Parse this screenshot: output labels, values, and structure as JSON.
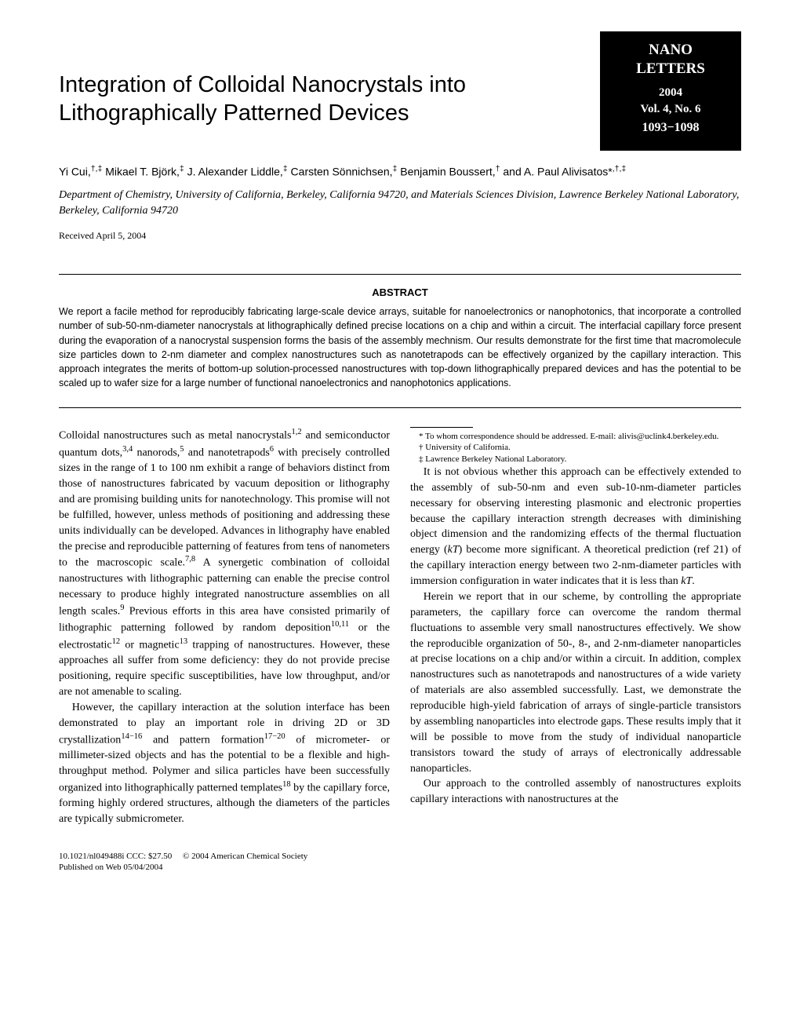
{
  "journal": {
    "name_line1": "NANO",
    "name_line2": "LETTERS",
    "year": "2004",
    "volume": "Vol. 4, No. 6",
    "pages": "1093−1098"
  },
  "title": "Integration of Colloidal Nanocrystals into Lithographically Patterned Devices",
  "authors_html": "Yi Cui,<sup>†,‡</sup> Mikael T. Björk,<sup>‡</sup> J. Alexander Liddle,<sup>‡</sup> Carsten Sönnichsen,<sup>‡</sup> Benjamin Boussert,<sup>†</sup> and A. Paul Alivisatos*<sup>,†,‡</sup>",
  "affiliation": "Department of Chemistry, University of California, Berkeley, California 94720, and Materials Sciences Division, Lawrence Berkeley National Laboratory, Berkeley, California 94720",
  "received": "Received April 5, 2004",
  "abstract_label": "ABSTRACT",
  "abstract": "We report a facile method for reproducibly fabricating large-scale device arrays, suitable for nanoelectronics or nanophotonics, that incorporate a controlled number of sub-50-nm-diameter nanocrystals at lithographically defined precise locations on a chip and within a circuit. The interfacial capillary force present during the evaporation of a nanocrystal suspension forms the basis of the assembly mechnism. Our results demonstrate for the first time that macromolecule size particles down to 2-nm diameter and complex nanostructures such as nanotetrapods can be effectively organized by the capillary interaction. This approach integrates the merits of bottom-up solution-processed nanostructures with top-down lithographically prepared devices and has the potential to be scaled up to wafer size for a large number of functional nanoelectronics and nanophotonics applications.",
  "body": {
    "p1_html": "Colloidal nanostructures such as metal nanocrystals<sup>1,2</sup> and semiconductor quantum dots,<sup>3,4</sup> nanorods,<sup>5</sup> and nanotetrapods<sup>6</sup> with precisely controlled sizes in the range of 1 to 100 nm exhibit a range of behaviors distinct from those of nanostructures fabricated by vacuum deposition or lithography and are promising building units for nanotechnology. This promise will not be fulfilled, however, unless methods of positioning and addressing these units individually can be developed. Advances in lithography have enabled the precise and reproducible patterning of features from tens of nanometers to the macroscopic scale.<sup>7,8</sup> A synergetic combination of colloidal nanostructures with lithographic patterning can enable the precise control necessary to produce highly integrated nanostructure assemblies on all length scales.<sup>9</sup> Previous efforts in this area have consisted primarily of lithographic patterning followed by random deposition<sup>10,11</sup> or the electrostatic<sup>12</sup> or magnetic<sup>13</sup> trapping of nanostructures. However, these approaches all suffer from some deficiency: they do not provide precise positioning, require specific susceptibilities, have low throughput, and/or are not amenable to scaling.",
    "p2_html": "However, the capillary interaction at the solution interface has been demonstrated to play an important role in driving 2D or 3D crystallization<sup>14−16</sup> and pattern formation<sup>17−20</sup> of micrometer- or millimeter-sized objects and has the potential to be a flexible and high-throughput method. Polymer and silica particles have been successfully organized into lithographically patterned templates<sup>18</sup> by the capillary force, forming highly ordered structures, although the diameters of the particles are typically submicrometer.",
    "p3_html": "It is not obvious whether this approach can be effectively extended to the assembly of sub-50-nm and even sub-10-nm-diameter particles necessary for observing interesting plasmonic and electronic properties because the capillary interaction strength decreases with diminishing object dimension and the randomizing effects of the thermal fluctuation energy (<i>kT</i>) become more significant. A theoretical prediction (ref 21) of the capillary interaction energy between two 2-nm-diameter particles with immersion configuration in water indicates that it is less than <i>kT</i>.",
    "p4_html": "Herein we report that in our scheme, by controlling the appropriate parameters, the capillary force can overcome the random thermal fluctuations to assemble very small nanostructures effectively. We show the reproducible organization of 50-, 8-, and 2-nm-diameter nanoparticles at precise locations on a chip and/or within a circuit. In addition, complex nanostructures such as nanotetrapods and nanostructures of a wide variety of materials are also assembled successfully. Last, we demonstrate the reproducible high-yield fabrication of arrays of single-particle transistors by assembling nanoparticles into electrode gaps. These results imply that it will be possible to move from the study of individual nanoparticle transistors toward the study of arrays of electronically addressable nanoparticles.",
    "p5_html": "Our approach to the controlled assembly of nanostructures exploits capillary interactions with nanostructures at the"
  },
  "footnotes": {
    "corr": "* To whom correspondence should be addressed. E-mail: alivis@uclink4.berkeley.edu.",
    "dagger": "† University of California.",
    "ddagger": "‡ Lawrence Berkeley National Laboratory."
  },
  "footer": {
    "doi_line": "10.1021/nl049488i CCC: $27.50",
    "copyright": "© 2004 American Chemical Society",
    "pub_line": "Published on Web 05/04/2004"
  }
}
